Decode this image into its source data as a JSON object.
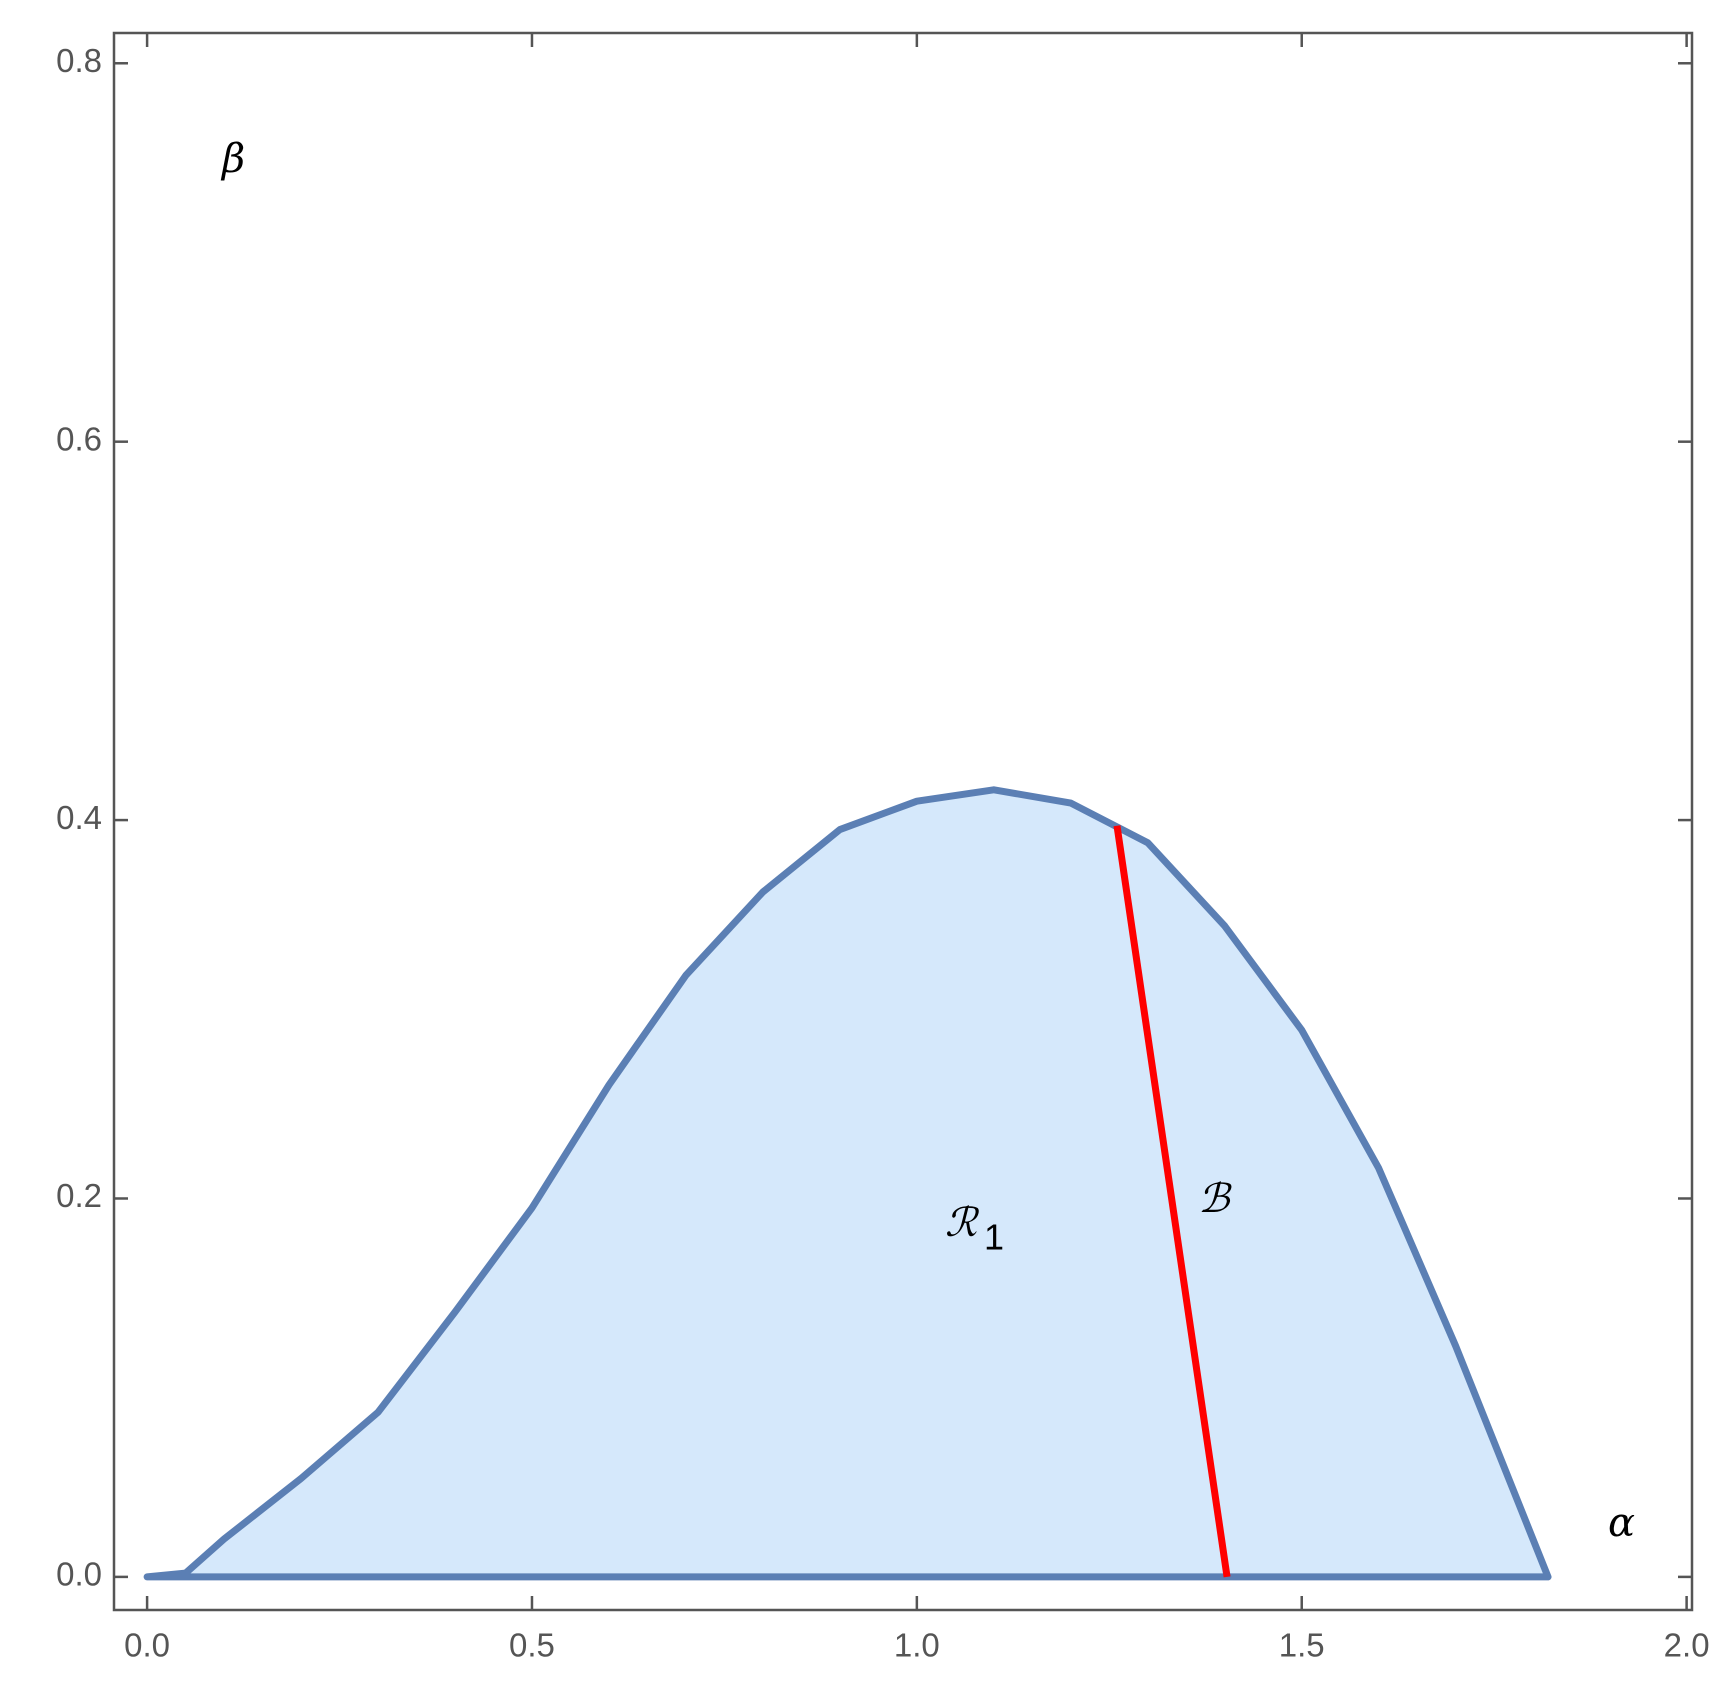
{
  "chart_data": {
    "type": "area",
    "x": [
      0,
      0.05,
      0.1,
      0.2,
      0.3,
      0.4,
      0.5,
      0.6,
      0.7,
      0.8,
      0.9,
      1.0,
      1.1,
      1.2,
      1.3,
      1.4,
      1.5,
      1.6,
      1.7,
      1.82
    ],
    "series": [
      {
        "color": "#5b7fb4",
        "fill": "#d5e8fb",
        "values": [
          0,
          0.002,
          0.02,
          0.052,
          0.087,
          0.14,
          0.195,
          0.26,
          0.318,
          0.362,
          0.395,
          0.41,
          0.416,
          0.409,
          0.388,
          0.344,
          0.289,
          0.216,
          0.122,
          0
        ]
      },
      {
        "color": "#ff0000",
        "x": [
          1.26,
          1.403
        ],
        "values": [
          0.397,
          0
        ]
      }
    ],
    "annotations": [
      "β",
      "α",
      "ℛ",
      "1",
      "ℬ"
    ],
    "xlim": [
      -0.043,
      2.007
    ],
    "ylim": [
      -0.0175,
      0.816
    ],
    "xticks": [
      {
        "value": 0,
        "label": "0.0"
      },
      0.5,
      {
        "value": 1,
        "label": "1.0"
      },
      1.5,
      {
        "value": 2,
        "label": "2.0"
      }
    ],
    "yticks": [
      {
        "value": 0,
        "label": "0.0"
      },
      0.2,
      0.4,
      0.6,
      0.8
    ]
  }
}
